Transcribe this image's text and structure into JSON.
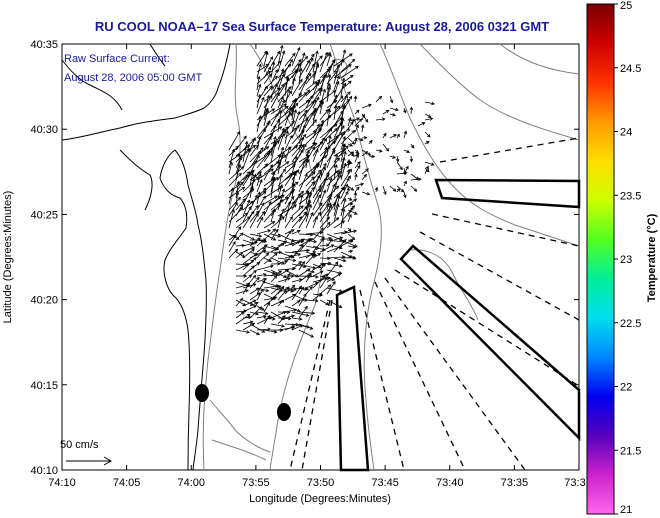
{
  "title": "RU COOL  NOAA–17  Sea Surface Temperature:  August 28, 2006 0321 GMT",
  "annotation": {
    "line1": "Raw Surface Current:",
    "line2": "August 28, 2006 05:00 GMT"
  },
  "scale_label": "50 cm/s",
  "axes": {
    "xlabel": "Longitude (Degrees:Minutes)",
    "ylabel": "Latitude (Degrees:Minutes)",
    "xticks": [
      "74:10",
      "74:05",
      "74:00",
      "73:55",
      "73:50",
      "73:45",
      "73:40",
      "73:35",
      "73:3"
    ],
    "yticks": [
      "40:35",
      "40:30",
      "40:25",
      "40:20",
      "40:15",
      "40:10"
    ]
  },
  "colorbar": {
    "label": "Temperature (°C)",
    "ticks": [
      "25",
      "24.5",
      "24",
      "23.5",
      "23",
      "22.5",
      "22",
      "21.5",
      "21"
    ],
    "colors": [
      "#7a0000",
      "#cc0000",
      "#ff3300",
      "#ff9900",
      "#ffdd00",
      "#ccff00",
      "#55ff22",
      "#00ee99",
      "#00ddee",
      "#0088ff",
      "#0000ee",
      "#5500bb",
      "#cc22cc",
      "#ff66ee"
    ]
  },
  "colors": {
    "title": "#1a1aa0",
    "coast": "#000000",
    "bathymetry": "#808080",
    "vectors": "#000000"
  }
}
